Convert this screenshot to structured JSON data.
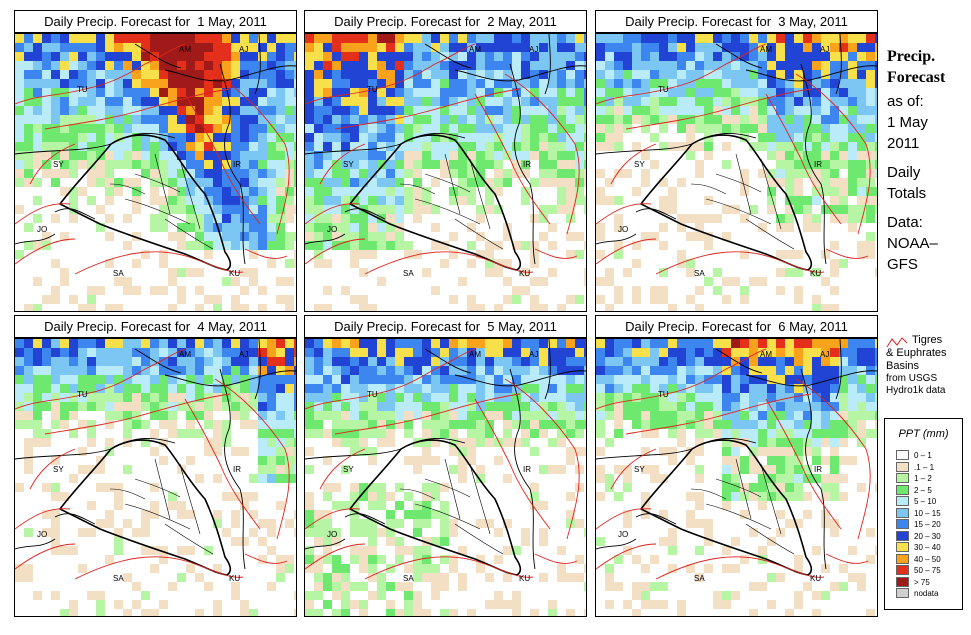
{
  "panels": [
    {
      "title": "Daily Precip. Forecast for  1 May, 2011",
      "day": 1
    },
    {
      "title": "Daily Precip. Forecast for  2 May, 2011",
      "day": 2
    },
    {
      "title": "Daily Precip. Forecast for  3 May, 2011",
      "day": 3
    },
    {
      "title": "Daily Precip. Forecast for  4 May, 2011",
      "day": 4
    },
    {
      "title": "Daily Precip. Forecast for  5 May, 2011",
      "day": 5
    },
    {
      "title": "Daily Precip. Forecast for  6 May, 2011",
      "day": 6
    }
  ],
  "country_labels": [
    "AM",
    "AJ",
    "TU",
    "SY",
    "IR",
    "JO",
    "SA",
    "KU"
  ],
  "side": {
    "title_line1": "Precip.",
    "title_line2": "Forecast",
    "asof": "as of:",
    "date_line1": "1 May",
    "date_line2": "2011",
    "daily1": "Daily",
    "daily2": "Totals",
    "data1": "Data:",
    "data2": "NOAA–",
    "data3": "GFS"
  },
  "basins": {
    "line1": "Tigres",
    "line2": "& Euphrates",
    "line3": "Basins",
    "line4": "from USGS",
    "line5": "Hydro1k data",
    "color": "#e0221c"
  },
  "legend": {
    "title": "PPT (mm)",
    "items": [
      {
        "label": "0 – 1",
        "color": "#ffffff"
      },
      {
        "label": ".1 – 1",
        "color": "#f3dfc4"
      },
      {
        "label": "1 – 2",
        "color": "#b6f5a4"
      },
      {
        "label": "2 – 5",
        "color": "#6fe86f"
      },
      {
        "label": "5 – 10",
        "color": "#b9ecf8"
      },
      {
        "label": "10 – 15",
        "color": "#7cc6f4"
      },
      {
        "label": "15 – 20",
        "color": "#3d86f0"
      },
      {
        "label": "20 – 30",
        "color": "#2244d4"
      },
      {
        "label": "30 – 40",
        "color": "#f8e04a"
      },
      {
        "label": "40 – 50",
        "color": "#f9a21c"
      },
      {
        "label": "50 – 75",
        "color": "#e4301a"
      },
      {
        "label": "> 75",
        "color": "#a11a1a"
      },
      {
        "label": "nodata",
        "color": "#cfcfcf"
      }
    ]
  }
}
